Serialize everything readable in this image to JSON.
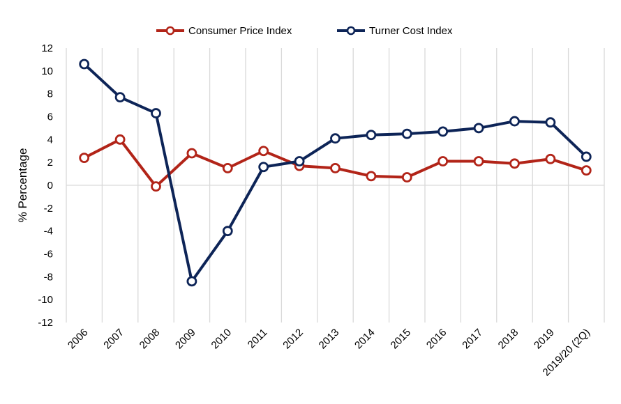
{
  "chart_data": {
    "type": "line",
    "title": "",
    "xlabel": "",
    "ylabel": "% Percentage",
    "ylim": [
      -12,
      12
    ],
    "ytick_step": 2,
    "grid": "vertical",
    "legend_position": "top-center",
    "categories": [
      "2006",
      "2007",
      "2008",
      "2009",
      "2010",
      "2011",
      "2012",
      "2013",
      "2014",
      "2015",
      "2016",
      "2017",
      "2018",
      "2019",
      "2019/20 (2Q)"
    ],
    "series": [
      {
        "name": "Consumer Price Index",
        "color": "#b22418",
        "values": [
          2.4,
          4.0,
          -0.1,
          2.8,
          1.5,
          3.0,
          1.7,
          1.5,
          0.8,
          0.7,
          2.1,
          2.1,
          1.9,
          2.3,
          1.3
        ]
      },
      {
        "name": "Turner Cost Index",
        "color": "#0d2457",
        "values": [
          10.6,
          7.7,
          6.3,
          -8.4,
          -4.0,
          1.6,
          2.1,
          4.1,
          4.4,
          4.5,
          4.7,
          5.0,
          5.6,
          5.5,
          2.5
        ]
      }
    ]
  }
}
